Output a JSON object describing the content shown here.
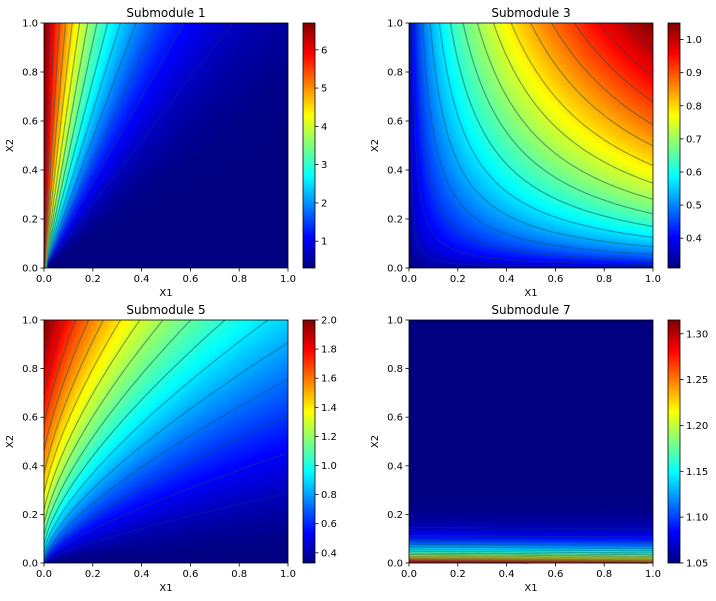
{
  "figure": {
    "colormap": "jet"
  },
  "chart_data": [
    {
      "type": "heatmap",
      "title": "Submodule 1",
      "xlabel": "X1",
      "ylabel": "X2",
      "xlim": [
        0,
        1
      ],
      "ylim": [
        0,
        1
      ],
      "x_ticks": [
        0.0,
        0.2,
        0.4,
        0.6,
        0.8,
        1.0
      ],
      "y_ticks": [
        0.0,
        0.2,
        0.4,
        0.6,
        0.8,
        1.0
      ],
      "x_tick_labels": [
        "0.0",
        "0.2",
        "0.4",
        "0.6",
        "0.8",
        "1.0"
      ],
      "y_tick_labels": [
        "0.0",
        "0.2",
        "0.4",
        "0.6",
        "0.8",
        "1.0"
      ],
      "colorbar": {
        "min": 0.3,
        "max": 6.7,
        "ticks": [
          1,
          2,
          3,
          4,
          5,
          6
        ],
        "tick_labels": [
          "1",
          "2",
          "3",
          "4",
          "5",
          "6"
        ]
      },
      "surface": "approx. 0.3 + 6.4 * 0.03^(x/y) (ratio-driven; high near x=0 axis)",
      "contour_levels": 14
    },
    {
      "type": "heatmap",
      "title": "Submodule 3",
      "xlabel": "X1",
      "ylabel": "X2",
      "xlim": [
        0,
        1
      ],
      "ylim": [
        0,
        1
      ],
      "x_ticks": [
        0.0,
        0.2,
        0.4,
        0.6,
        0.8,
        1.0
      ],
      "y_ticks": [
        0.0,
        0.2,
        0.4,
        0.6,
        0.8,
        1.0
      ],
      "x_tick_labels": [
        "0.0",
        "0.2",
        "0.4",
        "0.6",
        "0.8",
        "1.0"
      ],
      "y_tick_labels": [
        "0.0",
        "0.2",
        "0.4",
        "0.6",
        "0.8",
        "1.0"
      ],
      "colorbar": {
        "min": 0.31,
        "max": 1.05,
        "ticks": [
          0.4,
          0.5,
          0.6,
          0.7,
          0.8,
          0.9,
          1.0
        ],
        "tick_labels": [
          "0.4",
          "0.5",
          "0.6",
          "0.7",
          "0.8",
          "0.9",
          "1.0"
        ]
      },
      "surface": "approx. 0.31 + 0.74 * sqrt(x*y) (highest at top-right)",
      "contour_levels": 16
    },
    {
      "type": "heatmap",
      "title": "Submodule 5",
      "xlabel": "X1",
      "ylabel": "X2",
      "xlim": [
        0,
        1
      ],
      "ylim": [
        0,
        1
      ],
      "x_ticks": [
        0.0,
        0.2,
        0.4,
        0.6,
        0.8,
        1.0
      ],
      "y_ticks": [
        0.0,
        0.2,
        0.4,
        0.6,
        0.8,
        1.0
      ],
      "x_tick_labels": [
        "0.0",
        "0.2",
        "0.4",
        "0.6",
        "0.8",
        "1.0"
      ],
      "y_tick_labels": [
        "0.0",
        "0.2",
        "0.4",
        "0.6",
        "0.8",
        "1.0"
      ],
      "colorbar": {
        "min": 0.33,
        "max": 2.0,
        "ticks": [
          0.4,
          0.6,
          0.8,
          1.0,
          1.2,
          1.4,
          1.6,
          1.8,
          2.0
        ],
        "tick_labels": [
          "0.4",
          "0.6",
          "0.8",
          "1.0",
          "1.2",
          "1.4",
          "1.6",
          "1.8",
          "2.0"
        ]
      },
      "surface": "approx. 0.33 + 1.67 * (y/(x+y))^1.6 * y^0.35 (high at top-left, low along x axis)",
      "contour_levels": 16
    },
    {
      "type": "heatmap",
      "title": "Submodule 7",
      "xlabel": "X1",
      "ylabel": "X2",
      "xlim": [
        0,
        1
      ],
      "ylim": [
        0,
        1
      ],
      "x_ticks": [
        0.0,
        0.2,
        0.4,
        0.6,
        0.8,
        1.0
      ],
      "y_ticks": [
        0.0,
        0.2,
        0.4,
        0.6,
        0.8,
        1.0
      ],
      "x_tick_labels": [
        "0.0",
        "0.2",
        "0.4",
        "0.6",
        "0.8",
        "1.0"
      ],
      "y_tick_labels": [
        "0.0",
        "0.2",
        "0.4",
        "0.6",
        "0.8",
        "1.0"
      ],
      "colorbar": {
        "min": 1.05,
        "max": 1.315,
        "ticks": [
          1.05,
          1.1,
          1.15,
          1.2,
          1.25,
          1.3
        ],
        "tick_labels": [
          "1.05",
          "1.10",
          "1.15",
          "1.20",
          "1.25",
          "1.30"
        ]
      },
      "surface": "approx. 1.05 + 0.265 * (1-y)^18 with slight x tilt (highest along x axis at y=0)",
      "contour_levels": 16
    }
  ]
}
